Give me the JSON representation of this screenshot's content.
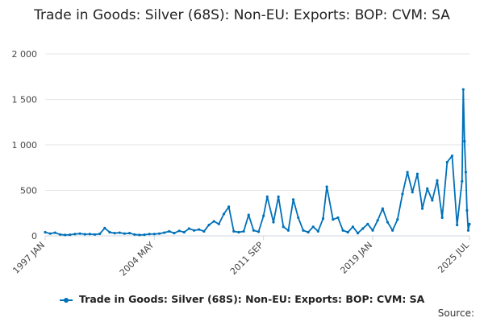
{
  "chart_data": {
    "type": "line",
    "title": "Trade in Goods: Silver (68S): Non-EU: Exports: BOP: CVM: SA",
    "xlabel": "",
    "ylabel": "",
    "x_start": "1997 JAN",
    "x_end": "2025 JUL",
    "x_tick_labels": [
      "1997 JAN",
      "2004 MAY",
      "2011 SEP",
      "2019 JAN",
      "2025 JUL"
    ],
    "y_ticks": [
      0,
      500,
      1000,
      1500,
      2000
    ],
    "y_tick_labels": [
      "0",
      "500",
      "1 000",
      "1 500",
      "2 000"
    ],
    "ylim": [
      0,
      2000
    ],
    "grid": "horizontal",
    "legend_position": "bottom",
    "series_color": "#0070b8",
    "series": [
      {
        "name": "Trade in Goods: Silver (68S): Non-EU: Exports: BOP: CVM: SA",
        "points": [
          [
            "1997 JAN",
            40
          ],
          [
            "1997 MAY",
            25
          ],
          [
            "1997 SEP",
            35
          ],
          [
            "1998 JAN",
            15
          ],
          [
            "1998 MAY",
            10
          ],
          [
            "1998 SEP",
            12
          ],
          [
            "1999 JAN",
            20
          ],
          [
            "1999 MAY",
            25
          ],
          [
            "1999 SEP",
            18
          ],
          [
            "2000 JAN",
            20
          ],
          [
            "2000 MAY",
            15
          ],
          [
            "2000 SEP",
            22
          ],
          [
            "2001 JAN",
            85
          ],
          [
            "2001 MAY",
            40
          ],
          [
            "2001 SEP",
            30
          ],
          [
            "2002 JAN",
            35
          ],
          [
            "2002 MAY",
            25
          ],
          [
            "2002 SEP",
            30
          ],
          [
            "2003 JAN",
            15
          ],
          [
            "2003 MAY",
            10
          ],
          [
            "2003 SEP",
            12
          ],
          [
            "2004 JAN",
            20
          ],
          [
            "2004 MAY",
            20
          ],
          [
            "2004 SEP",
            25
          ],
          [
            "2005 JAN",
            35
          ],
          [
            "2005 MAY",
            50
          ],
          [
            "2005 SEP",
            30
          ],
          [
            "2006 JAN",
            55
          ],
          [
            "2006 MAY",
            40
          ],
          [
            "2006 SEP",
            80
          ],
          [
            "2007 JAN",
            60
          ],
          [
            "2007 MAY",
            70
          ],
          [
            "2007 SEP",
            50
          ],
          [
            "2008 JAN",
            120
          ],
          [
            "2008 MAY",
            160
          ],
          [
            "2008 SEP",
            130
          ],
          [
            "2009 JAN",
            240
          ],
          [
            "2009 MAY",
            320
          ],
          [
            "2009 SEP",
            50
          ],
          [
            "2010 JAN",
            40
          ],
          [
            "2010 MAY",
            50
          ],
          [
            "2010 SEP",
            230
          ],
          [
            "2011 JAN",
            60
          ],
          [
            "2011 MAY",
            45
          ],
          [
            "2011 SEP",
            220
          ],
          [
            "2011 DEC",
            430
          ],
          [
            "2012 MAY",
            150
          ],
          [
            "2012 SEP",
            430
          ],
          [
            "2013 JAN",
            100
          ],
          [
            "2013 MAY",
            60
          ],
          [
            "2013 SEP",
            400
          ],
          [
            "2014 JAN",
            200
          ],
          [
            "2014 MAY",
            60
          ],
          [
            "2014 SEP",
            40
          ],
          [
            "2015 JAN",
            100
          ],
          [
            "2015 MAY",
            50
          ],
          [
            "2015 SEP",
            190
          ],
          [
            "2015 DEC",
            540
          ],
          [
            "2016 MAY",
            180
          ],
          [
            "2016 SEP",
            200
          ],
          [
            "2017 JAN",
            60
          ],
          [
            "2017 MAY",
            40
          ],
          [
            "2017 SEP",
            100
          ],
          [
            "2018 JAN",
            30
          ],
          [
            "2018 MAY",
            80
          ],
          [
            "2018 SEP",
            130
          ],
          [
            "2019 JAN",
            60
          ],
          [
            "2019 MAY",
            170
          ],
          [
            "2019 SEP",
            300
          ],
          [
            "2020 JAN",
            150
          ],
          [
            "2020 MAY",
            60
          ],
          [
            "2020 SEP",
            180
          ],
          [
            "2021 JAN",
            460
          ],
          [
            "2021 MAY",
            700
          ],
          [
            "2021 SEP",
            480
          ],
          [
            "2022 JAN",
            680
          ],
          [
            "2022 MAY",
            300
          ],
          [
            "2022 SEP",
            520
          ],
          [
            "2023 JAN",
            390
          ],
          [
            "2023 MAY",
            610
          ],
          [
            "2023 SEP",
            200
          ],
          [
            "2024 JAN",
            810
          ],
          [
            "2024 MAY",
            880
          ],
          [
            "2024 SEP",
            120
          ],
          [
            "2025 JAN",
            600
          ],
          [
            "2025 FEB",
            1610
          ],
          [
            "2025 MAR",
            1040
          ],
          [
            "2025 APR",
            700
          ],
          [
            "2025 MAY",
            280
          ],
          [
            "2025 JUN",
            60
          ],
          [
            "2025 JUL",
            130
          ]
        ]
      }
    ]
  },
  "source_label": "Source:"
}
